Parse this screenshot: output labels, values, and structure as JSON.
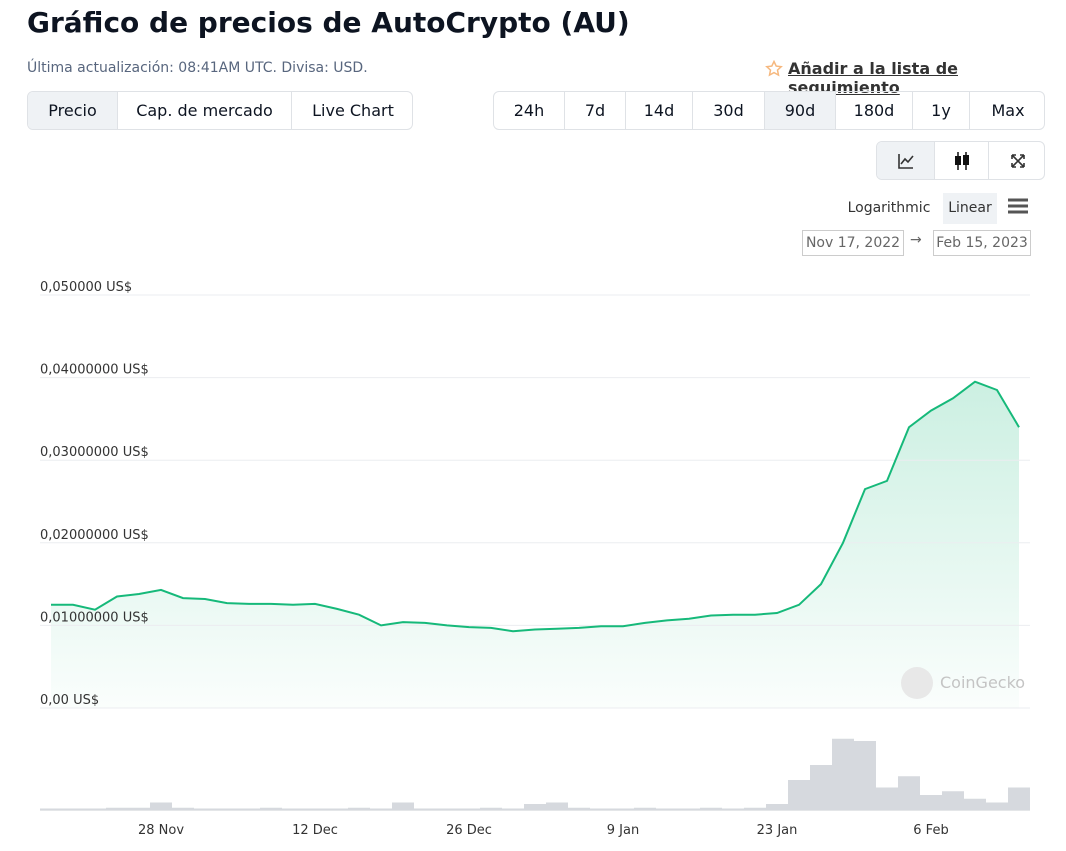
{
  "header": {
    "title": "Gráfico de precios de AutoCrypto (AU)",
    "updated": "Última actualización: 08:41AM UTC. Divisa: USD.",
    "watchlist": "Añadir a la lista de seguimiento"
  },
  "tabs": [
    "Precio",
    "Cap. de mercado",
    "Live Chart"
  ],
  "active_tab": 0,
  "ranges": [
    "24h",
    "7d",
    "14d",
    "30d",
    "90d",
    "180d",
    "1y",
    "Max"
  ],
  "active_range": 4,
  "scales": [
    "Logarithmic",
    "Linear"
  ],
  "active_scale": 1,
  "date_from": "Nov 17, 2022",
  "date_arrow": "→",
  "date_to": "Feb 15, 2023",
  "watermark": "CoinGecko",
  "chart_data": {
    "type": "line",
    "categories": [
      null,
      null,
      null,
      null,
      null,
      "28 Nov",
      null,
      null,
      null,
      null,
      null,
      null,
      "12 Dec",
      null,
      null,
      null,
      null,
      null,
      null,
      "26 Dec",
      null,
      null,
      null,
      null,
      null,
      null,
      "9 Jan",
      null,
      null,
      null,
      null,
      null,
      null,
      "23 Jan",
      null,
      null,
      null,
      null,
      null,
      null,
      "6 Feb",
      null,
      null,
      null,
      null
    ],
    "values": [
      0.0125,
      0.0125,
      0.0119,
      0.0135,
      0.0138,
      0.0143,
      0.0133,
      0.0132,
      0.0127,
      0.0126,
      0.0126,
      0.0125,
      0.0126,
      0.012,
      0.0113,
      0.01,
      0.0104,
      0.0103,
      0.01,
      0.0098,
      0.0097,
      0.0093,
      0.0095,
      0.0096,
      0.0097,
      0.0099,
      0.0099,
      0.0103,
      0.0106,
      0.0108,
      0.0112,
      0.0113,
      0.0113,
      0.0115,
      0.0125,
      0.015,
      0.02,
      0.0265,
      0.0275,
      0.034,
      0.036,
      0.0375,
      0.0395,
      0.0385,
      0.034
    ],
    "color": "#16b97a",
    "ylim": [
      0,
      0.05
    ],
    "yticks": [
      {
        "value": 0,
        "label": "0,00 US$"
      },
      {
        "value": 0.01,
        "label": "0,01000000 US$"
      },
      {
        "value": 0.02,
        "label": "0,02000000 US$"
      },
      {
        "value": 0.03,
        "label": "0,03000000 US$"
      },
      {
        "value": 0.04,
        "label": "0,04000000 US$"
      },
      {
        "value": 0.05,
        "label": "0,050000 US$"
      }
    ],
    "grid": true,
    "volumes": [
      2,
      2,
      2,
      3,
      3,
      10,
      3,
      2,
      2,
      2,
      3,
      2,
      2,
      2,
      3,
      2,
      10,
      2,
      2,
      2,
      3,
      2,
      8,
      10,
      3,
      2,
      2,
      3,
      2,
      2,
      3,
      2,
      3,
      8,
      40,
      60,
      95,
      92,
      30,
      45,
      20,
      25,
      15,
      10,
      30
    ],
    "volume_color": "#d6d9de",
    "y2lim": [
      0,
      100
    ]
  }
}
